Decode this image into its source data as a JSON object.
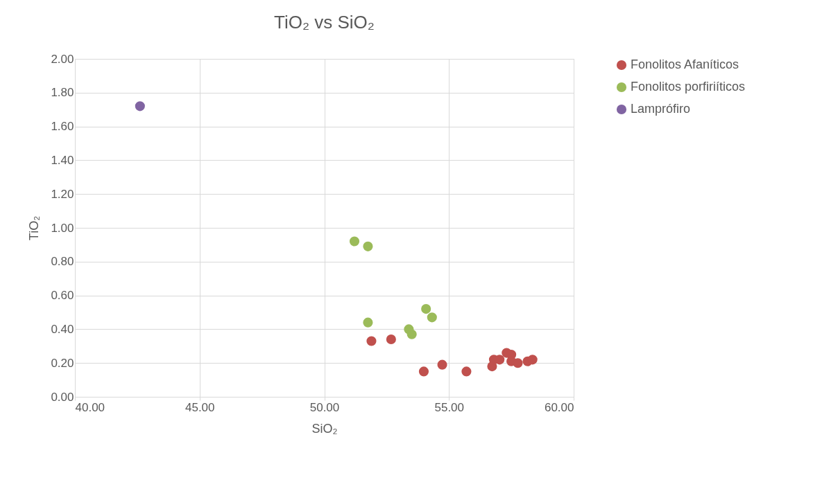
{
  "chart_data": {
    "type": "scatter",
    "title": "TiO₂ vs SiO₂",
    "xlabel": "SiO₂",
    "ylabel": "TiO₂",
    "xlim": [
      40,
      60
    ],
    "ylim": [
      0,
      2
    ],
    "xticks": [
      {
        "value": 40,
        "label": "40.00"
      },
      {
        "value": 45,
        "label": "45.00"
      },
      {
        "value": 50,
        "label": "50.00"
      },
      {
        "value": 55,
        "label": "55.00"
      },
      {
        "value": 60,
        "label": "60.00"
      }
    ],
    "yticks": [
      {
        "value": 0,
        "label": "0.00"
      },
      {
        "value": 0.2,
        "label": "0.20"
      },
      {
        "value": 0.4,
        "label": "0.40"
      },
      {
        "value": 0.6,
        "label": "0.60"
      },
      {
        "value": 0.8,
        "label": "0.80"
      },
      {
        "value": 1.0,
        "label": "1.00"
      },
      {
        "value": 1.2,
        "label": "1.20"
      },
      {
        "value": 1.4,
        "label": "1.40"
      },
      {
        "value": 1.6,
        "label": "1.60"
      },
      {
        "value": 1.8,
        "label": "1.80"
      },
      {
        "value": 2.0,
        "label": "2.00"
      }
    ],
    "grid": true,
    "legend": "right",
    "marker": "circle",
    "series": [
      {
        "name": "Fonolitos Afaníticos",
        "color": "#c0504d",
        "x": [
          51.89,
          52.68,
          53.99,
          54.73,
          55.7,
          56.73,
          56.8,
          57.03,
          57.31,
          57.5,
          57.5,
          57.76,
          58.15,
          58.35
        ],
        "values": [
          0.33,
          0.34,
          0.15,
          0.19,
          0.15,
          0.18,
          0.22,
          0.22,
          0.26,
          0.25,
          0.21,
          0.2,
          0.21,
          0.22
        ]
      },
      {
        "name": "Fonolitos porfiriíticos",
        "color": "#9bbb59",
        "x": [
          51.21,
          51.75,
          51.75,
          53.39,
          53.51,
          54.08,
          54.32
        ],
        "values": [
          0.92,
          0.89,
          0.44,
          0.4,
          0.37,
          0.52,
          0.47
        ]
      },
      {
        "name": "Lamprófiro",
        "color": "#8064a2",
        "x": [
          42.61
        ],
        "values": [
          1.72
        ]
      }
    ]
  }
}
